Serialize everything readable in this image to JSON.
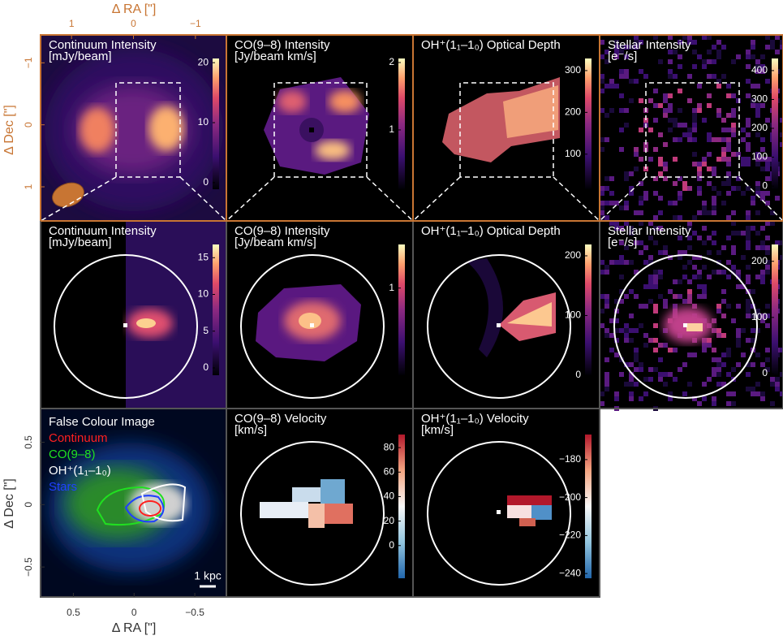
{
  "top_axis": {
    "label": "Δ RA [\"]",
    "xlim": [
      1.5,
      -1.5
    ],
    "ticks": [
      1,
      0,
      {
        "value": -1,
        "label": "−1"
      }
    ]
  },
  "left_axis_top": {
    "label": "Δ Dec [\"]",
    "ylim": [
      -1.45,
      1.55
    ],
    "ticks": [
      1,
      0,
      {
        "value": -1,
        "label": "−1"
      }
    ]
  },
  "bottom_axis": {
    "label": "Δ RA [\"]",
    "xlim": [
      0.77,
      -0.76
    ],
    "ticks": [
      0.5,
      0,
      {
        "value": -0.5,
        "label": "−0.5"
      }
    ]
  },
  "left_axis_bottom": {
    "label": "Δ Dec [\"]",
    "ylim": [
      -0.74,
      0.77
    ],
    "ticks": [
      0.5,
      0,
      {
        "value": -0.5,
        "label": "−0.5"
      }
    ]
  },
  "panels": [
    {
      "title": "Continuum Intensity",
      "unit": "[mJy/beam]",
      "colormap": "magma",
      "colorbar": {
        "lim": [
          -1.1,
          20.7
        ],
        "ticks": [
          0,
          10,
          20
        ]
      }
    },
    {
      "title": "CO(9–8) Intensity",
      "unit": "[Jy/beam km/s]",
      "colormap": "magma",
      "colorbar": {
        "lim": [
          0.12,
          2.06
        ],
        "ticks": [
          1,
          2
        ]
      }
    },
    {
      "title": "OH⁺(1₁–1₀) Optical Depth",
      "colormap": "magma",
      "colorbar": {
        "lim": [
          16,
          329
        ],
        "ticks": [
          100,
          200,
          300
        ]
      }
    },
    {
      "title": "Stellar Intensity",
      "unit": "[e⁻/s]",
      "colormap": "magma",
      "colorbar": {
        "lim": [
          -11,
          442
        ],
        "ticks": [
          0,
          100,
          200,
          300,
          400
        ]
      }
    },
    {
      "title": "Continuum Intensity",
      "unit": "[mJy/beam]",
      "colormap": "magma",
      "colorbar": {
        "lim": [
          -1,
          16.8
        ],
        "ticks": [
          0,
          5,
          10,
          15
        ]
      }
    },
    {
      "title": "CO(9–8) Intensity",
      "unit": "[Jy/beam km/s]",
      "colormap": "magma",
      "colorbar": {
        "lim": [
          0,
          1.5
        ],
        "ticks": [
          1
        ]
      }
    },
    {
      "title": "OH⁺(1₁–1₀) Optical Depth",
      "colormap": "magma",
      "colorbar": {
        "lim": [
          0,
          219
        ],
        "ticks": [
          0,
          100,
          200
        ]
      }
    },
    {
      "title": "Stellar Intensity",
      "unit": "[e⁻/s]",
      "colormap": "magma",
      "colorbar": {
        "lim": [
          -3,
          230
        ],
        "ticks": [
          0,
          100,
          200
        ]
      }
    },
    {
      "title": "CO(9–8) Velocity",
      "unit": "[km/s]",
      "colormap": "diverging",
      "colorbar": {
        "lim": [
          -26.7,
          90.7
        ],
        "ticks": [
          0,
          20,
          40,
          60,
          80
        ]
      }
    },
    {
      "title": "OH⁺(1₁–1₀) Velocity",
      "unit": "[km/s]",
      "colormap": "diverging",
      "colorbar": {
        "lim": [
          -242.5,
          -166.8
        ],
        "ticks": [
          {
            "value": -180,
            "label": "−180"
          },
          {
            "value": -200,
            "label": "−200"
          },
          {
            "value": -220,
            "label": "−220"
          },
          {
            "value": -240,
            "label": "−240"
          }
        ]
      }
    }
  ],
  "false_colour": {
    "title": "False Colour Image",
    "legend": [
      {
        "name": "Continuum",
        "color": "#ff2020"
      },
      {
        "name": "CO(9–8)",
        "color": "#20e020"
      },
      {
        "name": "OH⁺(1₁–1₀)",
        "color": "#ffffff"
      },
      {
        "name": "Stars",
        "color": "#2040ff"
      }
    ],
    "scale_bar": "1 kpc"
  }
}
